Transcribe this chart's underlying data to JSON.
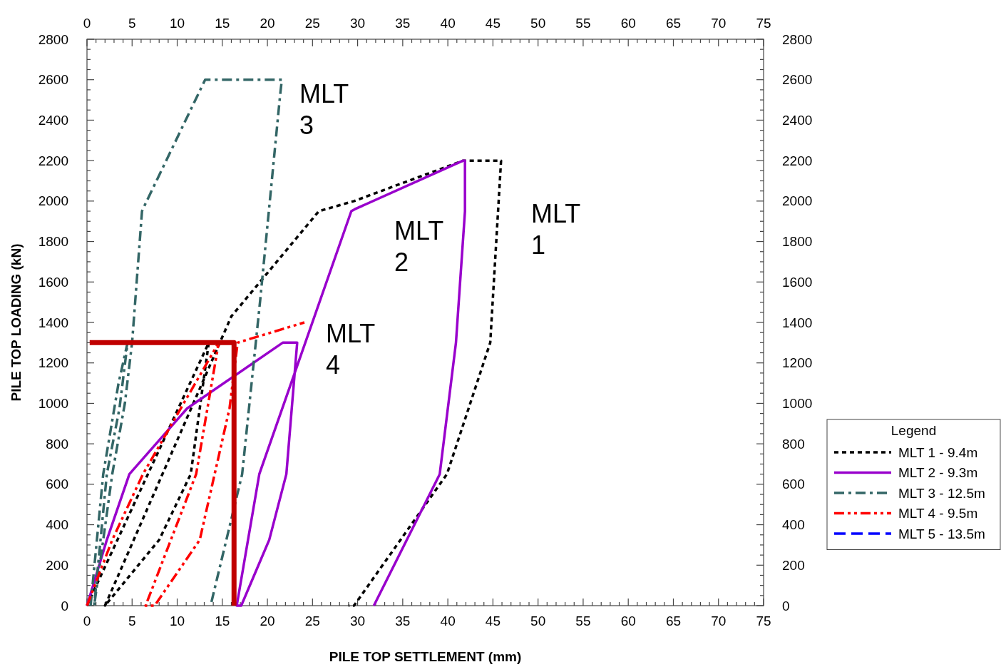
{
  "chart_data": {
    "type": "line",
    "xlabel": "PILE TOP SETTLEMENT (mm)",
    "ylabel": "PILE TOP LOADING (kN)",
    "legend_title": "Legend",
    "legend": "right",
    "grid": false,
    "marker": "none",
    "xlim": [
      0,
      75
    ],
    "ylim": [
      0,
      2800
    ],
    "x2lim": [
      0,
      75
    ],
    "y2lim": [
      0,
      2800
    ],
    "xticks": [
      0,
      5,
      10,
      15,
      20,
      25,
      30,
      35,
      40,
      45,
      50,
      55,
      60,
      65,
      70,
      75,
      {
        "value": 1,
        "label": null
      },
      {
        "value": 2,
        "label": null
      },
      {
        "value": 3,
        "label": null
      },
      {
        "value": 4,
        "label": null
      },
      {
        "value": 6,
        "label": null
      },
      {
        "value": 7,
        "label": null
      },
      {
        "value": 8,
        "label": null
      },
      {
        "value": 9,
        "label": null
      },
      {
        "value": 11,
        "label": null
      },
      {
        "value": 12,
        "label": null
      },
      {
        "value": 13,
        "label": null
      },
      {
        "value": 14,
        "label": null
      },
      {
        "value": 16,
        "label": null
      },
      {
        "value": 17,
        "label": null
      },
      {
        "value": 18,
        "label": null
      },
      {
        "value": 19,
        "label": null
      },
      {
        "value": 21,
        "label": null
      },
      {
        "value": 22,
        "label": null
      },
      {
        "value": 23,
        "label": null
      },
      {
        "value": 24,
        "label": null
      },
      {
        "value": 26,
        "label": null
      },
      {
        "value": 27,
        "label": null
      },
      {
        "value": 28,
        "label": null
      },
      {
        "value": 29,
        "label": null
      },
      {
        "value": 31,
        "label": null
      },
      {
        "value": 32,
        "label": null
      },
      {
        "value": 33,
        "label": null
      },
      {
        "value": 34,
        "label": null
      },
      {
        "value": 36,
        "label": null
      },
      {
        "value": 37,
        "label": null
      },
      {
        "value": 38,
        "label": null
      },
      {
        "value": 39,
        "label": null
      },
      {
        "value": 41,
        "label": null
      },
      {
        "value": 42,
        "label": null
      },
      {
        "value": 43,
        "label": null
      },
      {
        "value": 44,
        "label": null
      },
      {
        "value": 46,
        "label": null
      },
      {
        "value": 47,
        "label": null
      },
      {
        "value": 48,
        "label": null
      },
      {
        "value": 49,
        "label": null
      },
      {
        "value": 51,
        "label": null
      },
      {
        "value": 52,
        "label": null
      },
      {
        "value": 53,
        "label": null
      },
      {
        "value": 54,
        "label": null
      },
      {
        "value": 56,
        "label": null
      },
      {
        "value": 57,
        "label": null
      },
      {
        "value": 58,
        "label": null
      },
      {
        "value": 59,
        "label": null
      },
      {
        "value": 61,
        "label": null
      },
      {
        "value": 62,
        "label": null
      },
      {
        "value": 63,
        "label": null
      },
      {
        "value": 64,
        "label": null
      },
      {
        "value": 66,
        "label": null
      },
      {
        "value": 67,
        "label": null
      },
      {
        "value": 68,
        "label": null
      },
      {
        "value": 69,
        "label": null
      },
      {
        "value": 71,
        "label": null
      },
      {
        "value": 72,
        "label": null
      },
      {
        "value": 73,
        "label": null
      },
      {
        "value": 74,
        "label": null
      }
    ],
    "x2ticks": [
      0,
      5,
      10,
      15,
      20,
      25,
      30,
      35,
      40,
      45,
      50,
      55,
      60,
      65,
      70,
      75,
      {
        "value": 1,
        "label": null
      },
      {
        "value": 2,
        "label": null
      },
      {
        "value": 3,
        "label": null
      },
      {
        "value": 4,
        "label": null
      },
      {
        "value": 6,
        "label": null
      },
      {
        "value": 7,
        "label": null
      },
      {
        "value": 8,
        "label": null
      },
      {
        "value": 9,
        "label": null
      },
      {
        "value": 11,
        "label": null
      },
      {
        "value": 12,
        "label": null
      },
      {
        "value": 13,
        "label": null
      },
      {
        "value": 14,
        "label": null
      },
      {
        "value": 16,
        "label": null
      },
      {
        "value": 17,
        "label": null
      },
      {
        "value": 18,
        "label": null
      },
      {
        "value": 19,
        "label": null
      },
      {
        "value": 21,
        "label": null
      },
      {
        "value": 22,
        "label": null
      },
      {
        "value": 23,
        "label": null
      },
      {
        "value": 24,
        "label": null
      },
      {
        "value": 26,
        "label": null
      },
      {
        "value": 27,
        "label": null
      },
      {
        "value": 28,
        "label": null
      },
      {
        "value": 29,
        "label": null
      },
      {
        "value": 31,
        "label": null
      },
      {
        "value": 32,
        "label": null
      },
      {
        "value": 33,
        "label": null
      },
      {
        "value": 34,
        "label": null
      },
      {
        "value": 36,
        "label": null
      },
      {
        "value": 37,
        "label": null
      },
      {
        "value": 38,
        "label": null
      },
      {
        "value": 39,
        "label": null
      },
      {
        "value": 41,
        "label": null
      },
      {
        "value": 42,
        "label": null
      },
      {
        "value": 43,
        "label": null
      },
      {
        "value": 44,
        "label": null
      },
      {
        "value": 46,
        "label": null
      },
      {
        "value": 47,
        "label": null
      },
      {
        "value": 48,
        "label": null
      },
      {
        "value": 49,
        "label": null
      },
      {
        "value": 51,
        "label": null
      },
      {
        "value": 52,
        "label": null
      },
      {
        "value": 53,
        "label": null
      },
      {
        "value": 54,
        "label": null
      },
      {
        "value": 56,
        "label": null
      },
      {
        "value": 57,
        "label": null
      },
      {
        "value": 58,
        "label": null
      },
      {
        "value": 59,
        "label": null
      },
      {
        "value": 61,
        "label": null
      },
      {
        "value": 62,
        "label": null
      },
      {
        "value": 63,
        "label": null
      },
      {
        "value": 64,
        "label": null
      },
      {
        "value": 66,
        "label": null
      },
      {
        "value": 67,
        "label": null
      },
      {
        "value": 68,
        "label": null
      },
      {
        "value": 69,
        "label": null
      },
      {
        "value": 71,
        "label": null
      },
      {
        "value": 72,
        "label": null
      },
      {
        "value": 73,
        "label": null
      },
      {
        "value": 74,
        "label": null
      }
    ],
    "yticks": [
      0,
      200,
      400,
      600,
      800,
      1000,
      1200,
      1400,
      1600,
      1800,
      2000,
      2200,
      2400,
      2600,
      2800,
      {
        "value": 50,
        "label": null
      },
      {
        "value": 100,
        "label": null
      },
      {
        "value": 150,
        "label": null
      },
      {
        "value": 250,
        "label": null
      },
      {
        "value": 300,
        "label": null
      },
      {
        "value": 350,
        "label": null
      },
      {
        "value": 450,
        "label": null
      },
      {
        "value": 500,
        "label": null
      },
      {
        "value": 550,
        "label": null
      },
      {
        "value": 650,
        "label": null
      },
      {
        "value": 700,
        "label": null
      },
      {
        "value": 750,
        "label": null
      },
      {
        "value": 850,
        "label": null
      },
      {
        "value": 900,
        "label": null
      },
      {
        "value": 950,
        "label": null
      },
      {
        "value": 1050,
        "label": null
      },
      {
        "value": 1100,
        "label": null
      },
      {
        "value": 1150,
        "label": null
      },
      {
        "value": 1250,
        "label": null
      },
      {
        "value": 1300,
        "label": null
      },
      {
        "value": 1350,
        "label": null
      },
      {
        "value": 1450,
        "label": null
      },
      {
        "value": 1500,
        "label": null
      },
      {
        "value": 1550,
        "label": null
      },
      {
        "value": 1650,
        "label": null
      },
      {
        "value": 1700,
        "label": null
      },
      {
        "value": 1750,
        "label": null
      },
      {
        "value": 1850,
        "label": null
      },
      {
        "value": 1900,
        "label": null
      },
      {
        "value": 1950,
        "label": null
      },
      {
        "value": 2050,
        "label": null
      },
      {
        "value": 2100,
        "label": null
      },
      {
        "value": 2150,
        "label": null
      },
      {
        "value": 2250,
        "label": null
      },
      {
        "value": 2300,
        "label": null
      },
      {
        "value": 2350,
        "label": null
      },
      {
        "value": 2450,
        "label": null
      },
      {
        "value": 2500,
        "label": null
      },
      {
        "value": 2550,
        "label": null
      },
      {
        "value": 2650,
        "label": null
      },
      {
        "value": 2700,
        "label": null
      },
      {
        "value": 2750,
        "label": null
      }
    ],
    "y2ticks": [
      0,
      200,
      400,
      600,
      800,
      1000,
      1200,
      1400,
      1600,
      1800,
      2000,
      2200,
      2400,
      2600,
      2800,
      {
        "value": 50,
        "label": null
      },
      {
        "value": 100,
        "label": null
      },
      {
        "value": 150,
        "label": null
      },
      {
        "value": 250,
        "label": null
      },
      {
        "value": 300,
        "label": null
      },
      {
        "value": 350,
        "label": null
      },
      {
        "value": 450,
        "label": null
      },
      {
        "value": 500,
        "label": null
      },
      {
        "value": 550,
        "label": null
      },
      {
        "value": 650,
        "label": null
      },
      {
        "value": 700,
        "label": null
      },
      {
        "value": 750,
        "label": null
      },
      {
        "value": 850,
        "label": null
      },
      {
        "value": 900,
        "label": null
      },
      {
        "value": 950,
        "label": null
      },
      {
        "value": 1050,
        "label": null
      },
      {
        "value": 1100,
        "label": null
      },
      {
        "value": 1150,
        "label": null
      },
      {
        "value": 1250,
        "label": null
      },
      {
        "value": 1300,
        "label": null
      },
      {
        "value": 1350,
        "label": null
      },
      {
        "value": 1450,
        "label": null
      },
      {
        "value": 1500,
        "label": null
      },
      {
        "value": 1550,
        "label": null
      },
      {
        "value": 1650,
        "label": null
      },
      {
        "value": 1700,
        "label": null
      },
      {
        "value": 1750,
        "label": null
      },
      {
        "value": 1850,
        "label": null
      },
      {
        "value": 1900,
        "label": null
      },
      {
        "value": 1950,
        "label": null
      },
      {
        "value": 2050,
        "label": null
      },
      {
        "value": 2100,
        "label": null
      },
      {
        "value": 2150,
        "label": null
      },
      {
        "value": 2250,
        "label": null
      },
      {
        "value": 2300,
        "label": null
      },
      {
        "value": 2350,
        "label": null
      },
      {
        "value": 2450,
        "label": null
      },
      {
        "value": 2500,
        "label": null
      },
      {
        "value": 2550,
        "label": null
      },
      {
        "value": 2650,
        "label": null
      },
      {
        "value": 2700,
        "label": null
      },
      {
        "value": 2750,
        "label": null
      }
    ],
    "series": [
      {
        "name": "MLT 1 - 9.4m",
        "color": "#000000",
        "line_style": "dotted",
        "x": [
          0,
          13.5,
          11.5,
          8,
          2,
          16,
          25.7,
          29.6,
          41.7,
          45.9,
          44.7,
          39.9,
          29.6,
          29
        ],
        "values": [
          0,
          1300,
          650,
          325,
          0,
          1430,
          1950,
          2000,
          2200,
          2200,
          1300,
          650,
          0,
          0
        ]
      },
      {
        "name": "MLT 2 - 9.3m",
        "color": "#9900cc",
        "line_style": "solid",
        "x": [
          0,
          2.2,
          4.7,
          11.1,
          21.7,
          23.3,
          22.1,
          20.2,
          17.1,
          16.6,
          19.1,
          29.3,
          29.7,
          41.7,
          41.9,
          41.9,
          40.9,
          39.1,
          31.8
        ],
        "values": [
          0,
          325,
          650,
          975,
          1300,
          1300,
          650,
          325,
          0,
          0,
          650,
          1950,
          1960,
          2200,
          2200,
          1950,
          1300,
          650,
          0
        ]
      },
      {
        "name": "MLT 3 - 12.5m",
        "color": "#336666",
        "line_style": "dashdot",
        "x": [
          0.4,
          1.8,
          3.5,
          4.5,
          3.6,
          2.2,
          0.8,
          2.8,
          4.2,
          5,
          6.1,
          6.3,
          13.1,
          21.6,
          21.4,
          19.2,
          17.2,
          13.7
        ],
        "values": [
          0,
          650,
          1100,
          1300,
          975,
          650,
          0,
          650,
          1000,
          1300,
          1950,
          1970,
          2600,
          2600,
          2520,
          1510,
          650,
          0
        ]
      },
      {
        "name": "MLT 4 - 9.5m",
        "color": "#ff0000",
        "line_style": "dashdotdot",
        "x": [
          0,
          2.8,
          6.2,
          14.6,
          12.1,
          6.5,
          7.5,
          12.5,
          15.8,
          16.7,
          24.1
        ],
        "values": [
          0,
          325,
          650,
          1300,
          650,
          0,
          0,
          325,
          975,
          1300,
          1400
        ]
      },
      {
        "name": "MLT 5 - 13.5m",
        "color": "#0000ff",
        "line_style": "dashed"
      },
      {
        "color": "#c00000",
        "line_style": "solid",
        "x": [
          0.3,
          16.3,
          16.3
        ],
        "values": [
          1300,
          1300,
          0
        ]
      }
    ],
    "annotations": [
      "MLT\n1",
      "MLT\n2",
      "MLT\n3",
      "MLT\n4"
    ]
  }
}
